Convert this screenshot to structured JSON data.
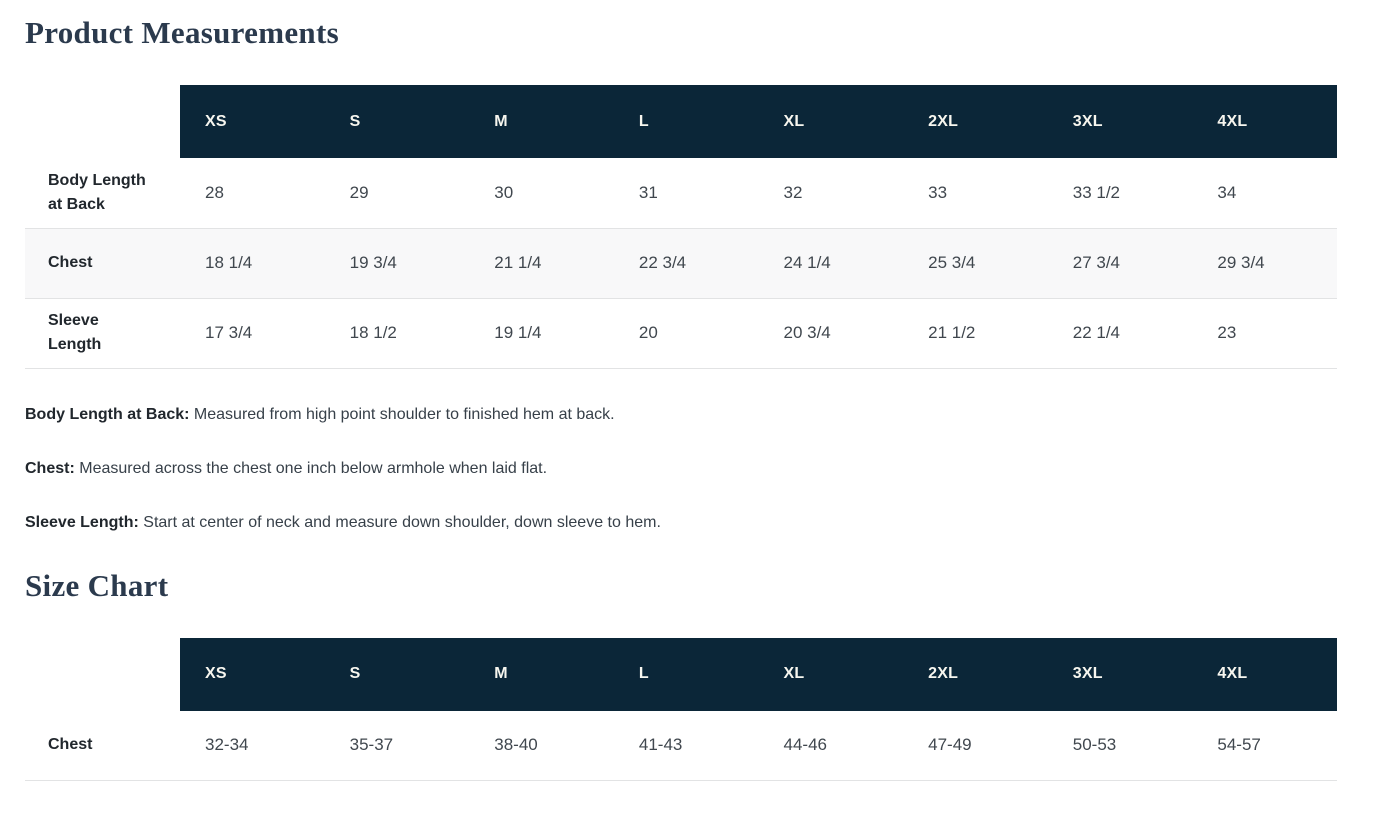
{
  "theme": {
    "header_bg": "#0b2638",
    "header_text": "#f7f6ef",
    "stripe_bg": "#f8f8f9",
    "border_color": "#e2e3e4",
    "title_color": "#2b3a4d",
    "label_color": "#21272d",
    "value_color": "#40474e",
    "body_text": "#374049"
  },
  "product_measurements": {
    "title": "Product Measurements",
    "columns": [
      "XS",
      "S",
      "M",
      "L",
      "XL",
      "2XL",
      "3XL",
      "4XL"
    ],
    "rows": [
      {
        "label": "Body Length at Back",
        "values": [
          "28",
          "29",
          "30",
          "31",
          "32",
          "33",
          "33 1/2",
          "34"
        ]
      },
      {
        "label": "Chest",
        "values": [
          "18 1/4",
          "19 3/4",
          "21 1/4",
          "22 3/4",
          "24 1/4",
          "25 3/4",
          "27 3/4",
          "29 3/4"
        ]
      },
      {
        "label": "Sleeve Length",
        "values": [
          "17 3/4",
          "18 1/2",
          "19 1/4",
          "20",
          "20 3/4",
          "21 1/2",
          "22 1/4",
          "23"
        ]
      }
    ],
    "definitions": [
      {
        "term": "Body Length at Back:",
        "text": "Measured from high point shoulder to finished hem at back."
      },
      {
        "term": "Chest:",
        "text": "Measured across the chest one inch below armhole when laid flat."
      },
      {
        "term": "Sleeve Length:",
        "text": "Start at center of neck and measure down shoulder, down sleeve to hem."
      }
    ]
  },
  "size_chart": {
    "title": "Size Chart",
    "columns": [
      "XS",
      "S",
      "M",
      "L",
      "XL",
      "2XL",
      "3XL",
      "4XL"
    ],
    "rows": [
      {
        "label": "Chest",
        "values": [
          "32-34",
          "35-37",
          "38-40",
          "41-43",
          "44-46",
          "47-49",
          "50-53",
          "54-57"
        ]
      }
    ]
  }
}
